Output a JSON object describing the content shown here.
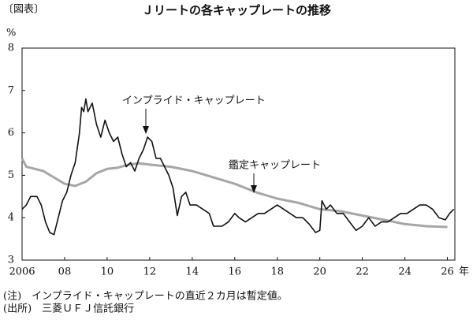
{
  "chart_data": {
    "type": "line",
    "figure_label": "〔図表〕",
    "title": "Ｊリートの各キャップレートの推移",
    "y_unit": "%",
    "x_unit": "年",
    "xlim": [
      2006,
      2026.35
    ],
    "ylim": [
      3,
      8
    ],
    "yticks": [
      3,
      4,
      5,
      6,
      7,
      8
    ],
    "xticks": [
      2006,
      {
        "value": 2008,
        "label": "08"
      },
      {
        "value": 2010,
        "label": "10"
      },
      {
        "value": 2012,
        "label": "12"
      },
      {
        "value": 2014,
        "label": "14"
      },
      {
        "value": 2016,
        "label": "16"
      },
      {
        "value": 2018,
        "label": "18"
      },
      {
        "value": 2020,
        "label": "20"
      },
      {
        "value": 2022,
        "label": "22"
      },
      {
        "value": 2024,
        "label": "24"
      },
      {
        "value": 2026,
        "label": "26"
      }
    ],
    "series": [
      {
        "name": "インプライド・キャップレート",
        "color": "#111111",
        "x": [
          2006.0,
          2006.2,
          2006.4,
          2006.7,
          2006.9,
          2007.1,
          2007.3,
          2007.5,
          2007.7,
          2007.9,
          2008.1,
          2008.3,
          2008.5,
          2008.7,
          2008.8,
          2008.9,
          2009.0,
          2009.1,
          2009.3,
          2009.5,
          2009.7,
          2009.9,
          2010.1,
          2010.3,
          2010.5,
          2010.7,
          2010.9,
          2011.1,
          2011.3,
          2011.5,
          2011.7,
          2011.9,
          2012.1,
          2012.3,
          2012.5,
          2012.7,
          2012.9,
          2013.1,
          2013.3,
          2013.5,
          2013.7,
          2013.9,
          2014.2,
          2014.5,
          2014.8,
          2015.0,
          2015.4,
          2015.7,
          2016.0,
          2016.2,
          2016.5,
          2016.8,
          2017.1,
          2017.4,
          2017.7,
          2018.0,
          2018.3,
          2018.6,
          2018.9,
          2019.2,
          2019.5,
          2019.8,
          2020.0,
          2020.1,
          2020.3,
          2020.5,
          2020.8,
          2021.1,
          2021.4,
          2021.7,
          2022.0,
          2022.3,
          2022.6,
          2022.9,
          2023.2,
          2023.5,
          2023.8,
          2024.1,
          2024.4,
          2024.7,
          2025.0,
          2025.3,
          2025.6,
          2025.9,
          2026.1,
          2026.3
        ],
        "values": [
          4.2,
          4.3,
          4.5,
          4.5,
          4.3,
          3.9,
          3.65,
          3.6,
          4.0,
          4.4,
          4.6,
          5.0,
          5.3,
          6.0,
          6.6,
          6.5,
          6.8,
          6.5,
          6.7,
          6.2,
          5.9,
          6.3,
          6.0,
          5.8,
          5.9,
          5.5,
          5.2,
          5.3,
          5.1,
          5.4,
          5.6,
          5.9,
          5.8,
          5.4,
          5.4,
          5.2,
          5.0,
          4.7,
          4.05,
          4.5,
          4.6,
          4.3,
          4.3,
          4.2,
          4.1,
          3.8,
          3.8,
          3.9,
          4.1,
          4.0,
          3.9,
          4.0,
          4.1,
          4.1,
          4.2,
          4.3,
          4.2,
          4.1,
          4.0,
          4.0,
          3.85,
          3.65,
          3.7,
          4.4,
          4.2,
          4.3,
          4.1,
          4.1,
          3.9,
          3.7,
          3.8,
          4.0,
          3.8,
          3.9,
          3.9,
          4.0,
          4.1,
          4.1,
          4.2,
          4.3,
          4.3,
          4.2,
          4.0,
          3.95,
          4.1,
          4.2
        ]
      },
      {
        "name": "鑑定キャップレート",
        "color": "#a6a6a6",
        "x": [
          2006.0,
          2006.2,
          2007.0,
          2007.5,
          2008.0,
          2008.5,
          2009.0,
          2009.5,
          2010.0,
          2010.5,
          2011.0,
          2011.5,
          2012.0,
          2013.0,
          2014.0,
          2015.0,
          2016.0,
          2017.0,
          2018.0,
          2019.0,
          2020.0,
          2021.0,
          2022.0,
          2023.0,
          2024.0,
          2025.0,
          2026.0
        ],
        "values": [
          5.4,
          5.2,
          5.1,
          4.95,
          4.8,
          4.75,
          4.85,
          5.05,
          5.15,
          5.18,
          5.25,
          5.28,
          5.25,
          5.2,
          5.1,
          4.95,
          4.8,
          4.6,
          4.45,
          4.35,
          4.2,
          4.15,
          4.05,
          3.95,
          3.85,
          3.8,
          3.78
        ]
      }
    ],
    "notes": [
      "(注)　インプライド・キャップレートの直近２カ月は暫定値。",
      "(出所)　三菱ＵＦＪ信託銀行"
    ]
  }
}
